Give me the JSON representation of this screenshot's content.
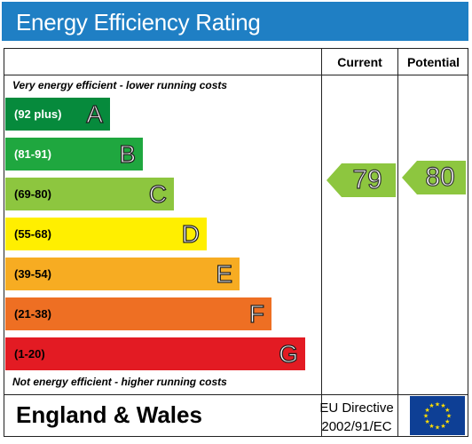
{
  "title": "Energy Efficiency Rating",
  "columns": {
    "current": "Current",
    "potential": "Potential"
  },
  "top_note": "Very energy efficient - lower running costs",
  "bottom_note": "Not energy efficient - higher running costs",
  "bands": [
    {
      "range": "(92 plus)",
      "letter": "A",
      "color": "#068a3c",
      "text_color": "#ffffff"
    },
    {
      "range": "(81-91)",
      "letter": "B",
      "color": "#1fa73f",
      "text_color": "#ffffff"
    },
    {
      "range": "(69-80)",
      "letter": "C",
      "color": "#8dc63f",
      "text_color": "#000000"
    },
    {
      "range": "(55-68)",
      "letter": "D",
      "color": "#ffef00",
      "text_color": "#000000"
    },
    {
      "range": "(39-54)",
      "letter": "E",
      "color": "#f7ac22",
      "text_color": "#000000"
    },
    {
      "range": "(21-38)",
      "letter": "F",
      "color": "#ee6f23",
      "text_color": "#000000"
    },
    {
      "range": "(1-20)",
      "letter": "G",
      "color": "#e31b23",
      "text_color": "#000000"
    }
  ],
  "ratings": {
    "current": {
      "value": "79",
      "color": "#8dc63f"
    },
    "potential": {
      "value": "80",
      "color": "#8dc63f"
    }
  },
  "footer": {
    "region": "England & Wales",
    "directive_line1": "EU Directive",
    "directive_line2": "2002/91/EC"
  },
  "flag_icon": "eu-flag-icon"
}
